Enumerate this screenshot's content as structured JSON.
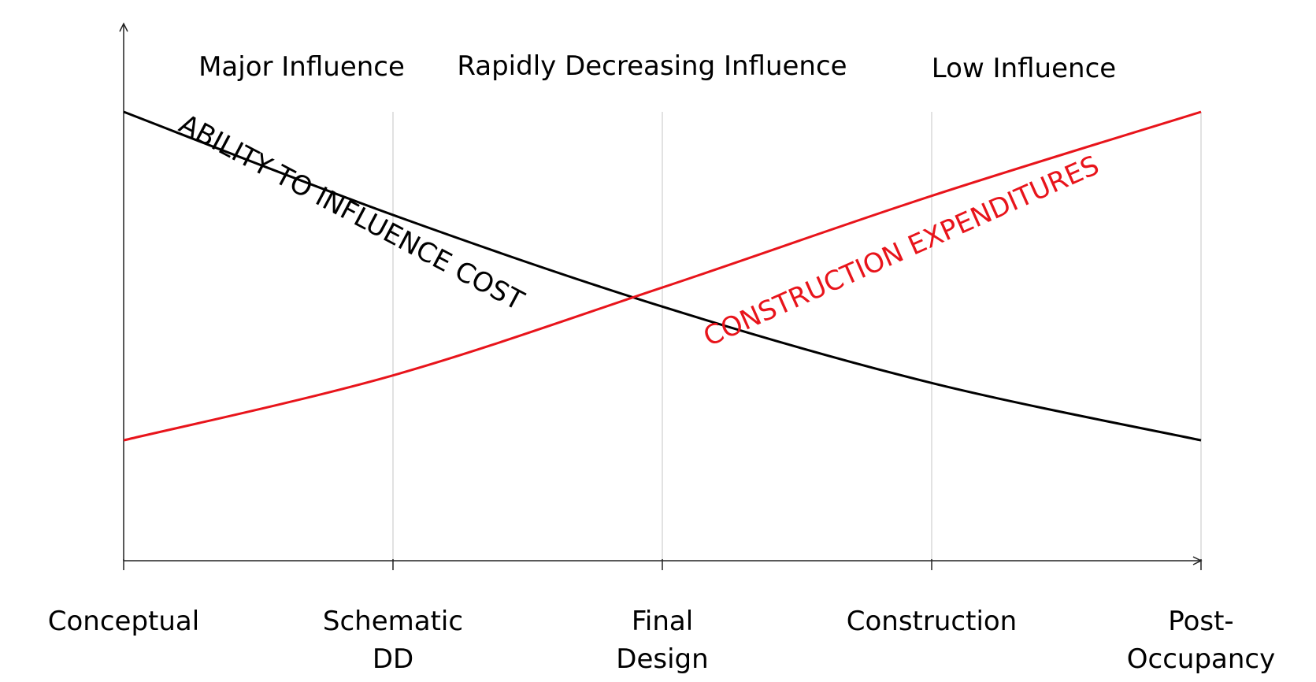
{
  "chart_data": {
    "type": "line",
    "categories": [
      "Conceptual",
      "Schematic DD",
      "Final Design",
      "Construction",
      "Post-Occupancy"
    ],
    "category_lines": [
      [
        "Conceptual"
      ],
      [
        "Schematic",
        "DD"
      ],
      [
        "Final",
        "Design"
      ],
      [
        "Construction"
      ],
      [
        "Post-",
        "Occupancy"
      ]
    ],
    "x": [
      0,
      1,
      2,
      3,
      4
    ],
    "ylim": [
      0,
      100
    ],
    "series": [
      {
        "name": "ABILITY TO INFLUENCE COST",
        "color": "#000000",
        "values": [
          100,
          73,
          49,
          29,
          14
        ]
      },
      {
        "name": "CONSTRUCTION EXPENDITURES",
        "color": "#e8141b",
        "values": [
          14,
          31,
          54,
          78,
          100
        ]
      }
    ],
    "regions": [
      "Major Influence",
      "Rapidly Decreasing Influence",
      "Low Influence"
    ],
    "grid": "vertical-at-categories",
    "axis_arrows": true
  }
}
